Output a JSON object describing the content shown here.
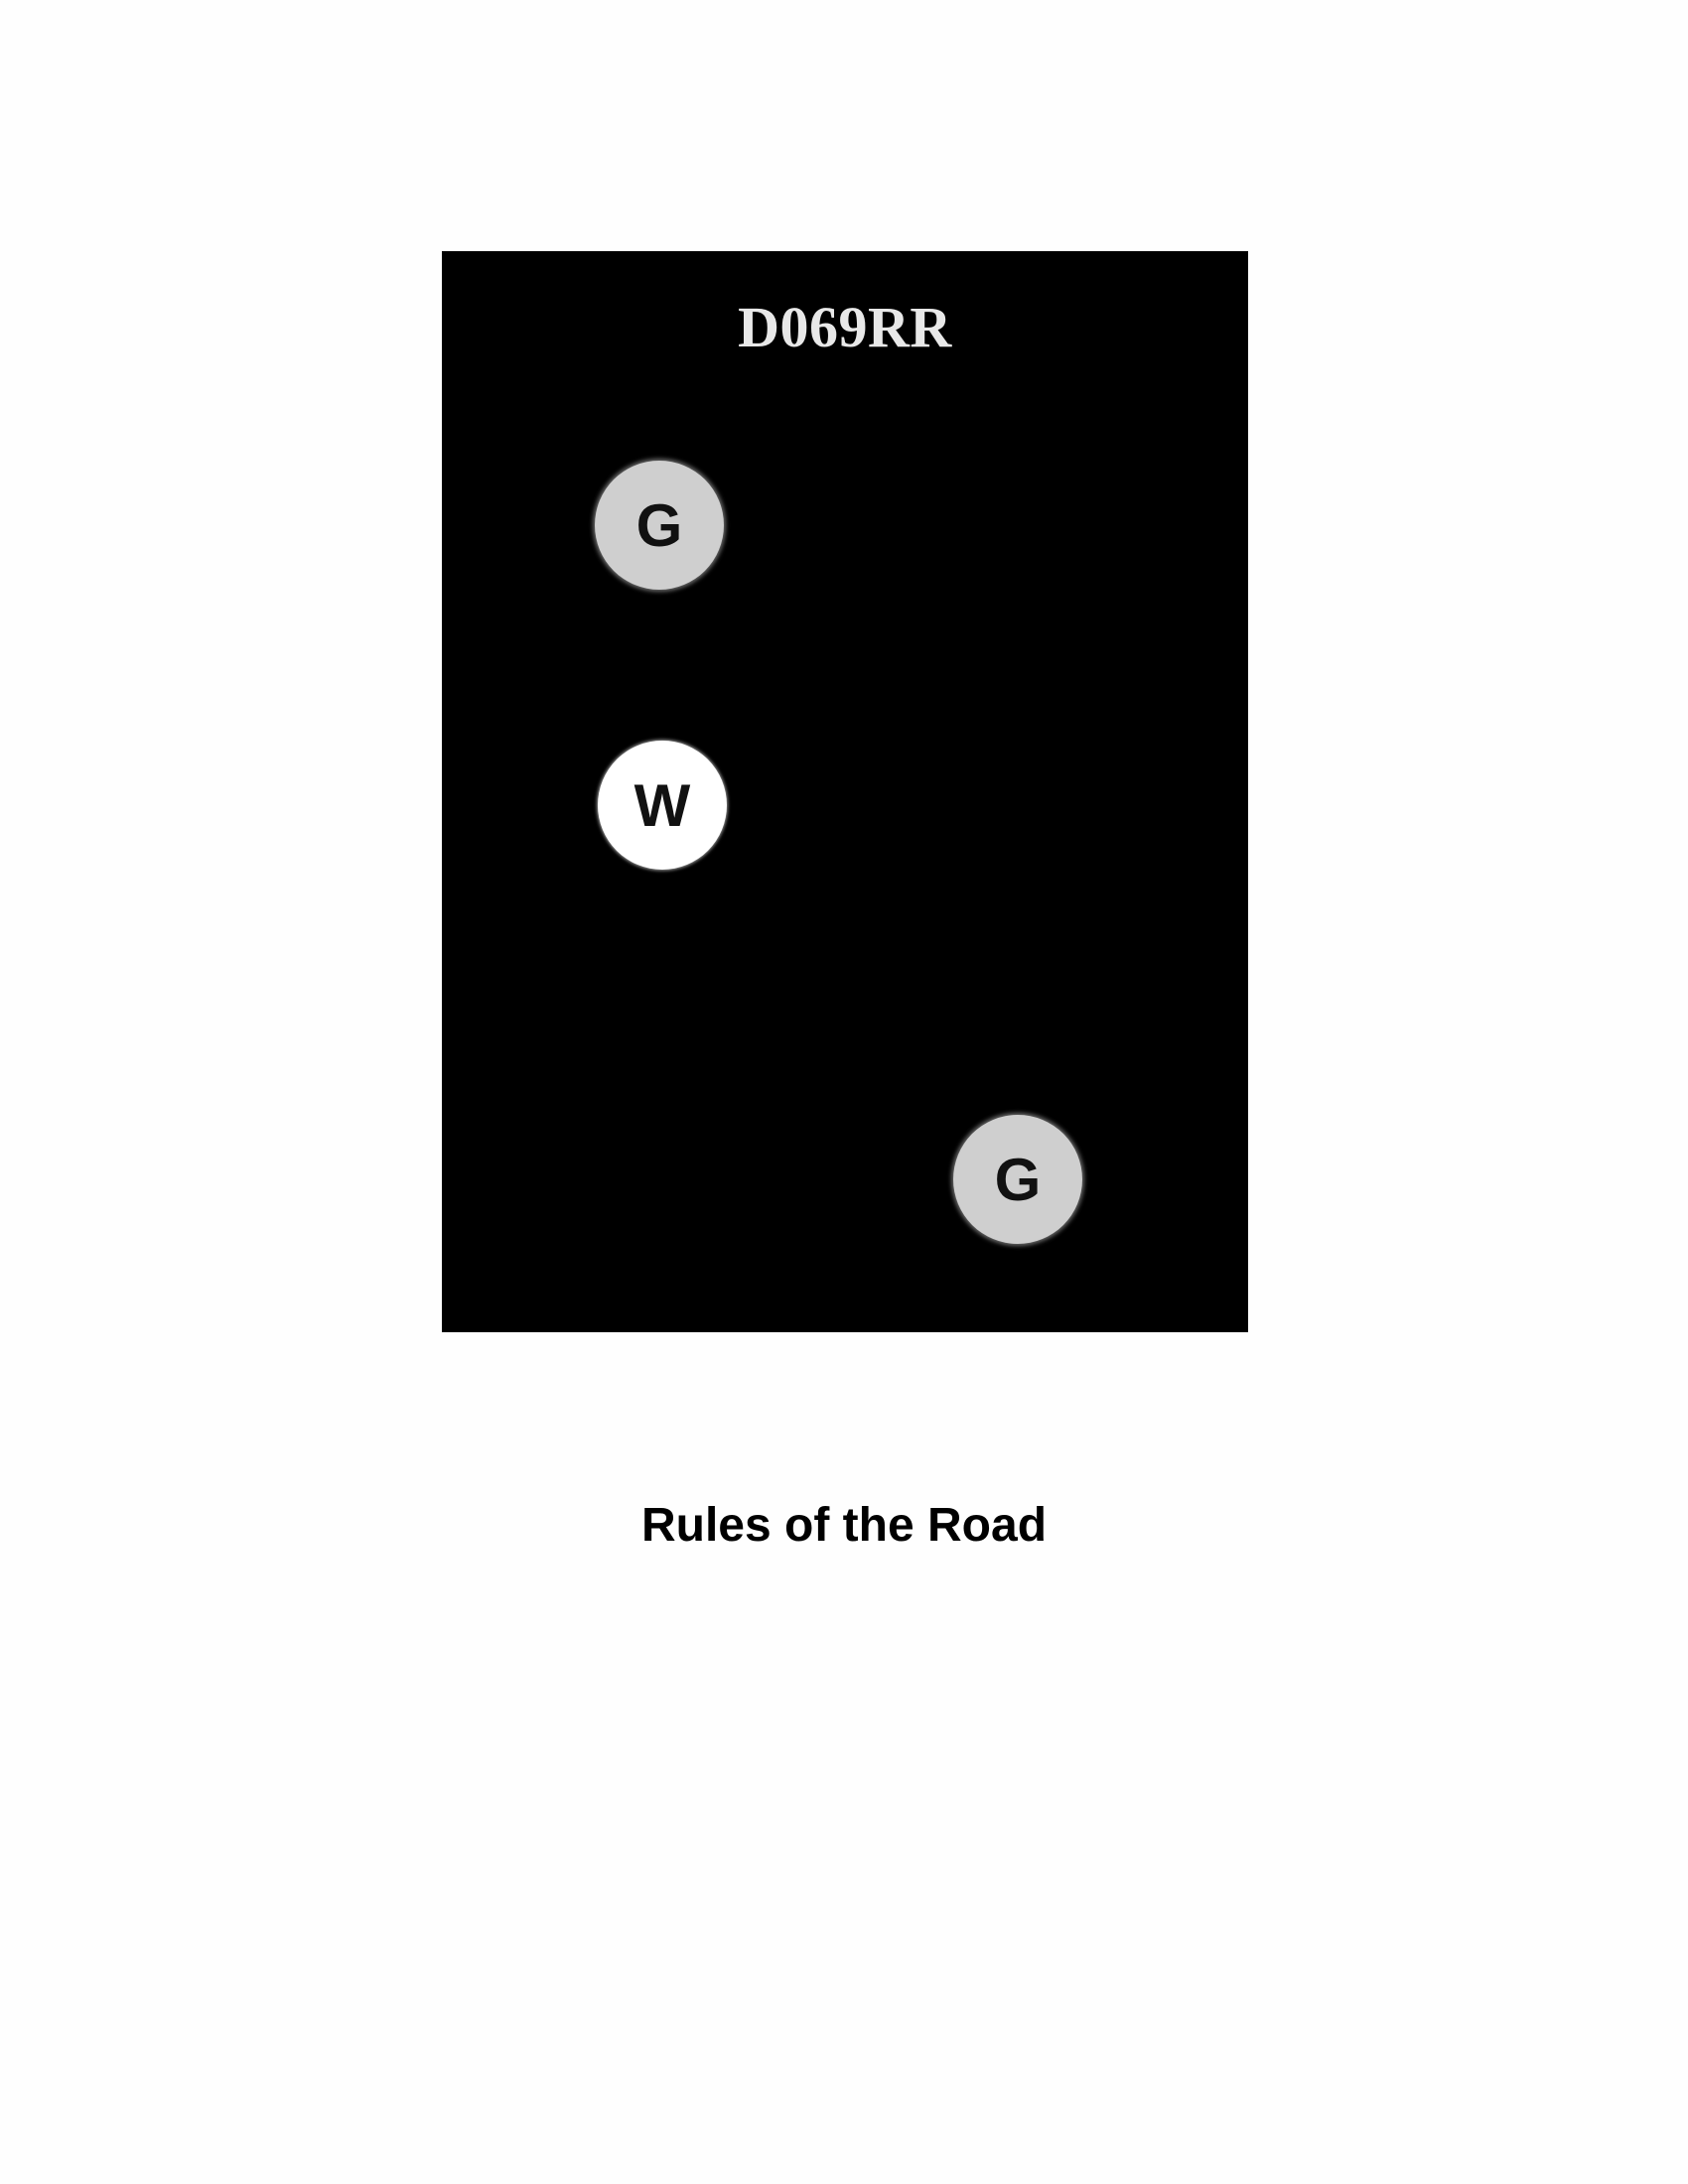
{
  "figure": {
    "code": "D069RR",
    "lights": [
      {
        "letter": "G",
        "meaning": "green",
        "color": "#cfcfcf"
      },
      {
        "letter": "W",
        "meaning": "white",
        "color": "#ffffff"
      },
      {
        "letter": "G",
        "meaning": "green",
        "color": "#cfcfcf"
      }
    ],
    "background_color": "#000000"
  },
  "caption": "Rules of the Road"
}
